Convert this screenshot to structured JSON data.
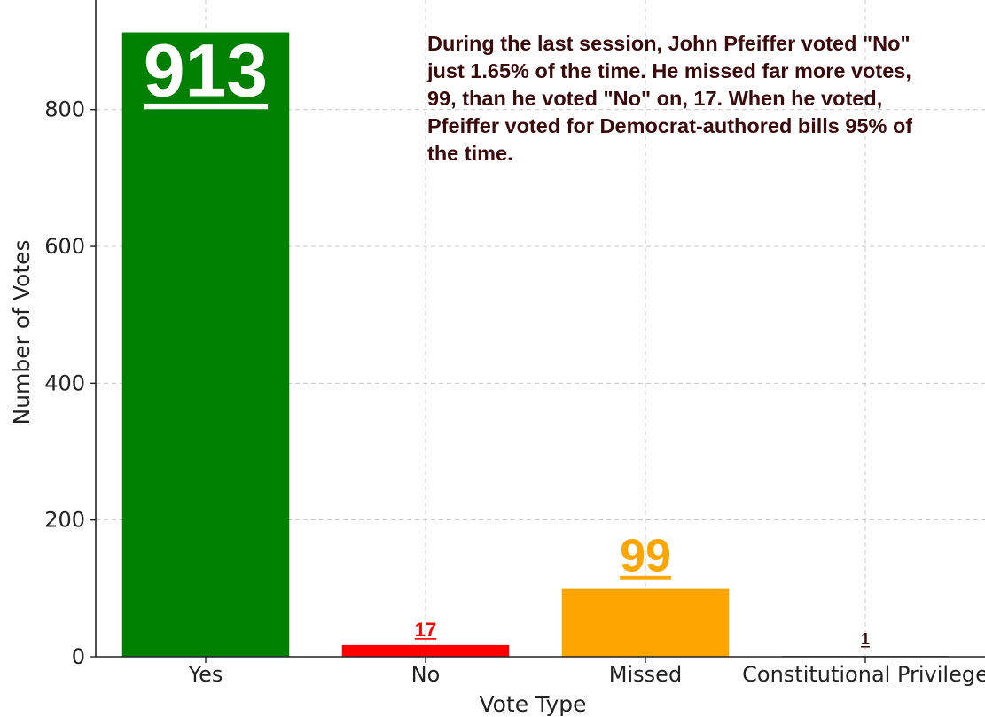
{
  "chart_data": {
    "type": "bar",
    "title": "",
    "xlabel": "Vote Type",
    "ylabel": "Number of Votes",
    "categories": [
      "Yes",
      "No",
      "Missed",
      "Constitutional Privilege"
    ],
    "values": [
      913,
      17,
      99,
      1
    ],
    "value_labels": [
      "913",
      "17",
      "99",
      "1"
    ],
    "ylim": [
      0,
      950
    ],
    "yticks": [
      "0",
      "200",
      "400",
      "600",
      "800"
    ],
    "grid": true,
    "colors": {
      "bars": [
        "#008000",
        "#ff0000",
        "#ffa500",
        "#3b0a0a"
      ],
      "labels": [
        "#ffffff",
        "#ff0000",
        "#ffa500",
        "#3b0a0a"
      ]
    },
    "annotation": "During the last session, John Pfeiffer voted \"No\" just 1.65% of the time. He missed far more votes, 99, than he voted \"No\" on, 17. When he voted, Pfeiffer voted for Democrat-authored bills 95% of the time."
  }
}
